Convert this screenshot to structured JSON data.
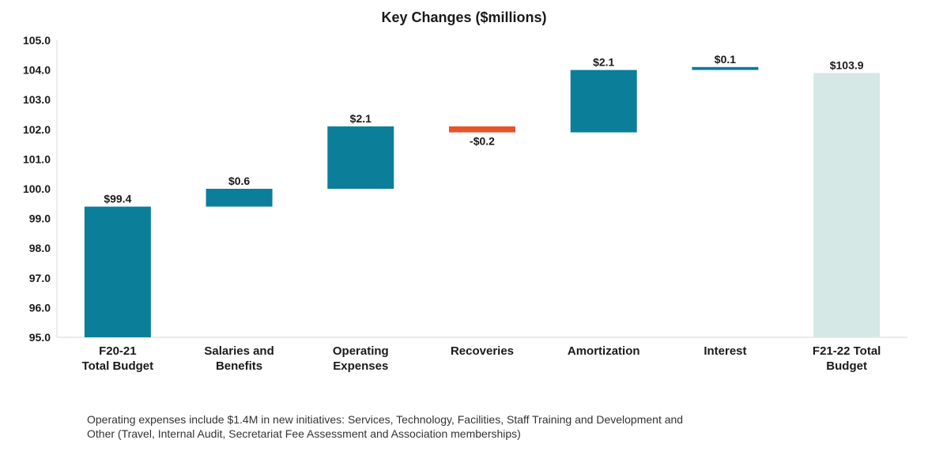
{
  "chart_data": {
    "type": "bar",
    "subtype": "waterfall",
    "title": "Key Changes ($millions)",
    "categories": [
      [
        "F20-21",
        "Total Budget"
      ],
      [
        "Salaries and",
        "Benefits"
      ],
      [
        "Operating",
        "Expenses"
      ],
      [
        "Recoveries"
      ],
      [
        "Amortization"
      ],
      [
        "Interest"
      ],
      [
        "F21-22 Total",
        "Budget"
      ]
    ],
    "steps": [
      {
        "kind": "total",
        "value": 99.4,
        "label": "$99.4"
      },
      {
        "kind": "increase",
        "value": 0.6,
        "label": "$0.6"
      },
      {
        "kind": "increase",
        "value": 2.1,
        "label": "$2.1"
      },
      {
        "kind": "decrease",
        "value": -0.2,
        "label": "-$0.2"
      },
      {
        "kind": "increase",
        "value": 2.1,
        "label": "$2.1"
      },
      {
        "kind": "increase",
        "value": 0.1,
        "label": "$0.1"
      },
      {
        "kind": "total_end",
        "value": 103.9,
        "label": "$103.9"
      }
    ],
    "ylim": [
      95.0,
      105.0
    ],
    "yticks": [
      "95.0",
      "96.0",
      "97.0",
      "98.0",
      "99.0",
      "100.0",
      "101.0",
      "102.0",
      "103.0",
      "104.0",
      "105.0"
    ],
    "xlabel": "",
    "ylabel": "",
    "grid": false,
    "colors": {
      "total": "#0b7e9a",
      "increase": "#0b7e9a",
      "decrease": "#e8532a",
      "total_end": "#d5e8e6",
      "axis": "#d9d9d9"
    }
  },
  "footnote": "Operating expenses include $1.4M in new initiatives: Services, Technology, Facilities, Staff Training and Development and Other (Travel, Internal Audit, Secretariat Fee Assessment and Association memberships)"
}
